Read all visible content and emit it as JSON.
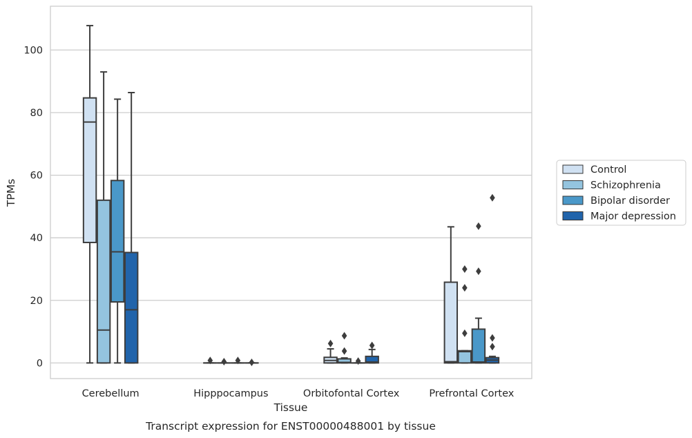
{
  "chart_data": {
    "type": "boxplot",
    "caption": "Transcript expression for ENST00000488001 by tissue",
    "xlabel": "Tissue",
    "ylabel": "TPMs",
    "ylim": [
      -5,
      114
    ],
    "yticks": [
      0,
      20,
      40,
      60,
      80,
      100
    ],
    "grid": "horizontal",
    "legend_position": "right",
    "categories": [
      "Cerebellum",
      "Hipppocampus",
      "Orbitofontal Cortex",
      "Prefrontal Cortex"
    ],
    "series": [
      {
        "name": "Control",
        "color": "#d0e1f2",
        "boxes": [
          {
            "whislo": 0,
            "q1": 38.5,
            "med": 77,
            "q3": 84.7,
            "whishi": 107.8,
            "fliers": []
          },
          {
            "whislo": 0,
            "q1": 0,
            "med": 0,
            "q3": 0,
            "whishi": 0,
            "fliers": [
              0.8
            ]
          },
          {
            "whislo": 0,
            "q1": 0,
            "med": 0.8,
            "q3": 1.8,
            "whishi": 4.5,
            "fliers": [
              6.2
            ]
          },
          {
            "whislo": 0,
            "q1": 0,
            "med": 0.4,
            "q3": 25.8,
            "whishi": 43.5,
            "fliers": []
          }
        ]
      },
      {
        "name": "Schizophrenia",
        "color": "#94c4df",
        "boxes": [
          {
            "whislo": 0,
            "q1": 0,
            "med": 10.5,
            "q3": 52,
            "whishi": 93,
            "fliers": []
          },
          {
            "whislo": 0,
            "q1": 0,
            "med": 0,
            "q3": 0,
            "whishi": 0,
            "fliers": [
              0.4
            ]
          },
          {
            "whislo": 0,
            "q1": 0,
            "med": 0.2,
            "q3": 1.3,
            "whishi": 1.6,
            "fliers": [
              3.8,
              8.7
            ]
          },
          {
            "whislo": 0,
            "q1": 0,
            "med": 3.6,
            "q3": 3.9,
            "whishi": 3.9,
            "fliers": [
              9.5,
              24,
              30
            ]
          }
        ]
      },
      {
        "name": "Bipolar disorder",
        "color": "#4a98c9",
        "boxes": [
          {
            "whislo": 0,
            "q1": 19.5,
            "med": 35.5,
            "q3": 58.3,
            "whishi": 84.3,
            "fliers": []
          },
          {
            "whislo": 0,
            "q1": 0,
            "med": 0,
            "q3": 0,
            "whishi": 0,
            "fliers": [
              0.8
            ]
          },
          {
            "whislo": 0,
            "q1": 0,
            "med": 0,
            "q3": 0,
            "whishi": 0,
            "fliers": [
              0.6
            ]
          },
          {
            "whislo": 0,
            "q1": 0,
            "med": 0.3,
            "q3": 10.8,
            "whishi": 14.3,
            "fliers": [
              29.3,
              43.7
            ]
          }
        ]
      },
      {
        "name": "Major depression",
        "color": "#2164ab",
        "boxes": [
          {
            "whislo": 0,
            "q1": 0,
            "med": 17,
            "q3": 35.3,
            "whishi": 86.4,
            "fliers": []
          },
          {
            "whislo": 0,
            "q1": 0,
            "med": 0,
            "q3": 0,
            "whishi": 0,
            "fliers": [
              0.2
            ]
          },
          {
            "whislo": 0,
            "q1": 0,
            "med": 0.3,
            "q3": 2.1,
            "whishi": 4.3,
            "fliers": [
              5.6
            ]
          },
          {
            "whislo": 0,
            "q1": 0,
            "med": 0.9,
            "q3": 1.7,
            "whishi": 2.1,
            "fliers": [
              5.2,
              8.0,
              52.8
            ]
          }
        ]
      }
    ]
  }
}
